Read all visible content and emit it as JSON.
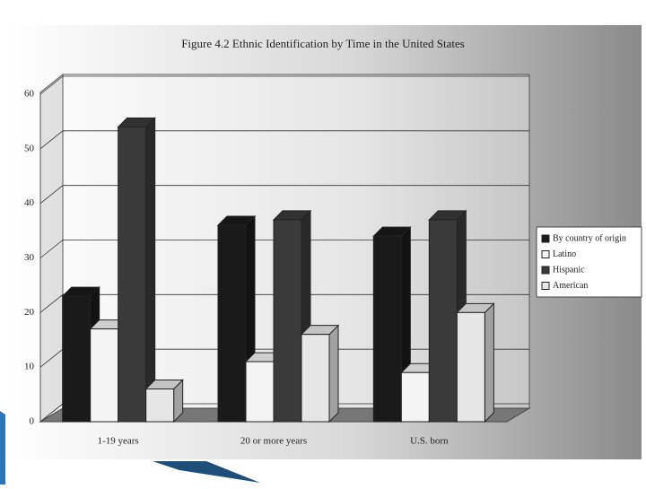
{
  "chart_data": {
    "type": "bar3d",
    "title": "Figure 4.2 Ethnic Identification by Time in the United States",
    "categories": [
      "1-19 years",
      "20 or more years",
      "U.S. born"
    ],
    "series": [
      {
        "name": "By country of origin",
        "color": "#1a1a1a",
        "values": [
          23,
          36,
          34
        ]
      },
      {
        "name": "Latino",
        "color": "#f4f4f4",
        "values": [
          17,
          11,
          9
        ]
      },
      {
        "name": "Hispanic",
        "color": "#3a3a3a",
        "values": [
          54,
          37,
          37
        ]
      },
      {
        "name": "American",
        "color": "#e6e6e6",
        "values": [
          6,
          16,
          20
        ]
      }
    ],
    "ylim": [
      0,
      60
    ],
    "yticks": [
      0,
      10,
      20,
      30,
      40,
      50,
      60
    ],
    "grid": true,
    "legend": "right"
  }
}
